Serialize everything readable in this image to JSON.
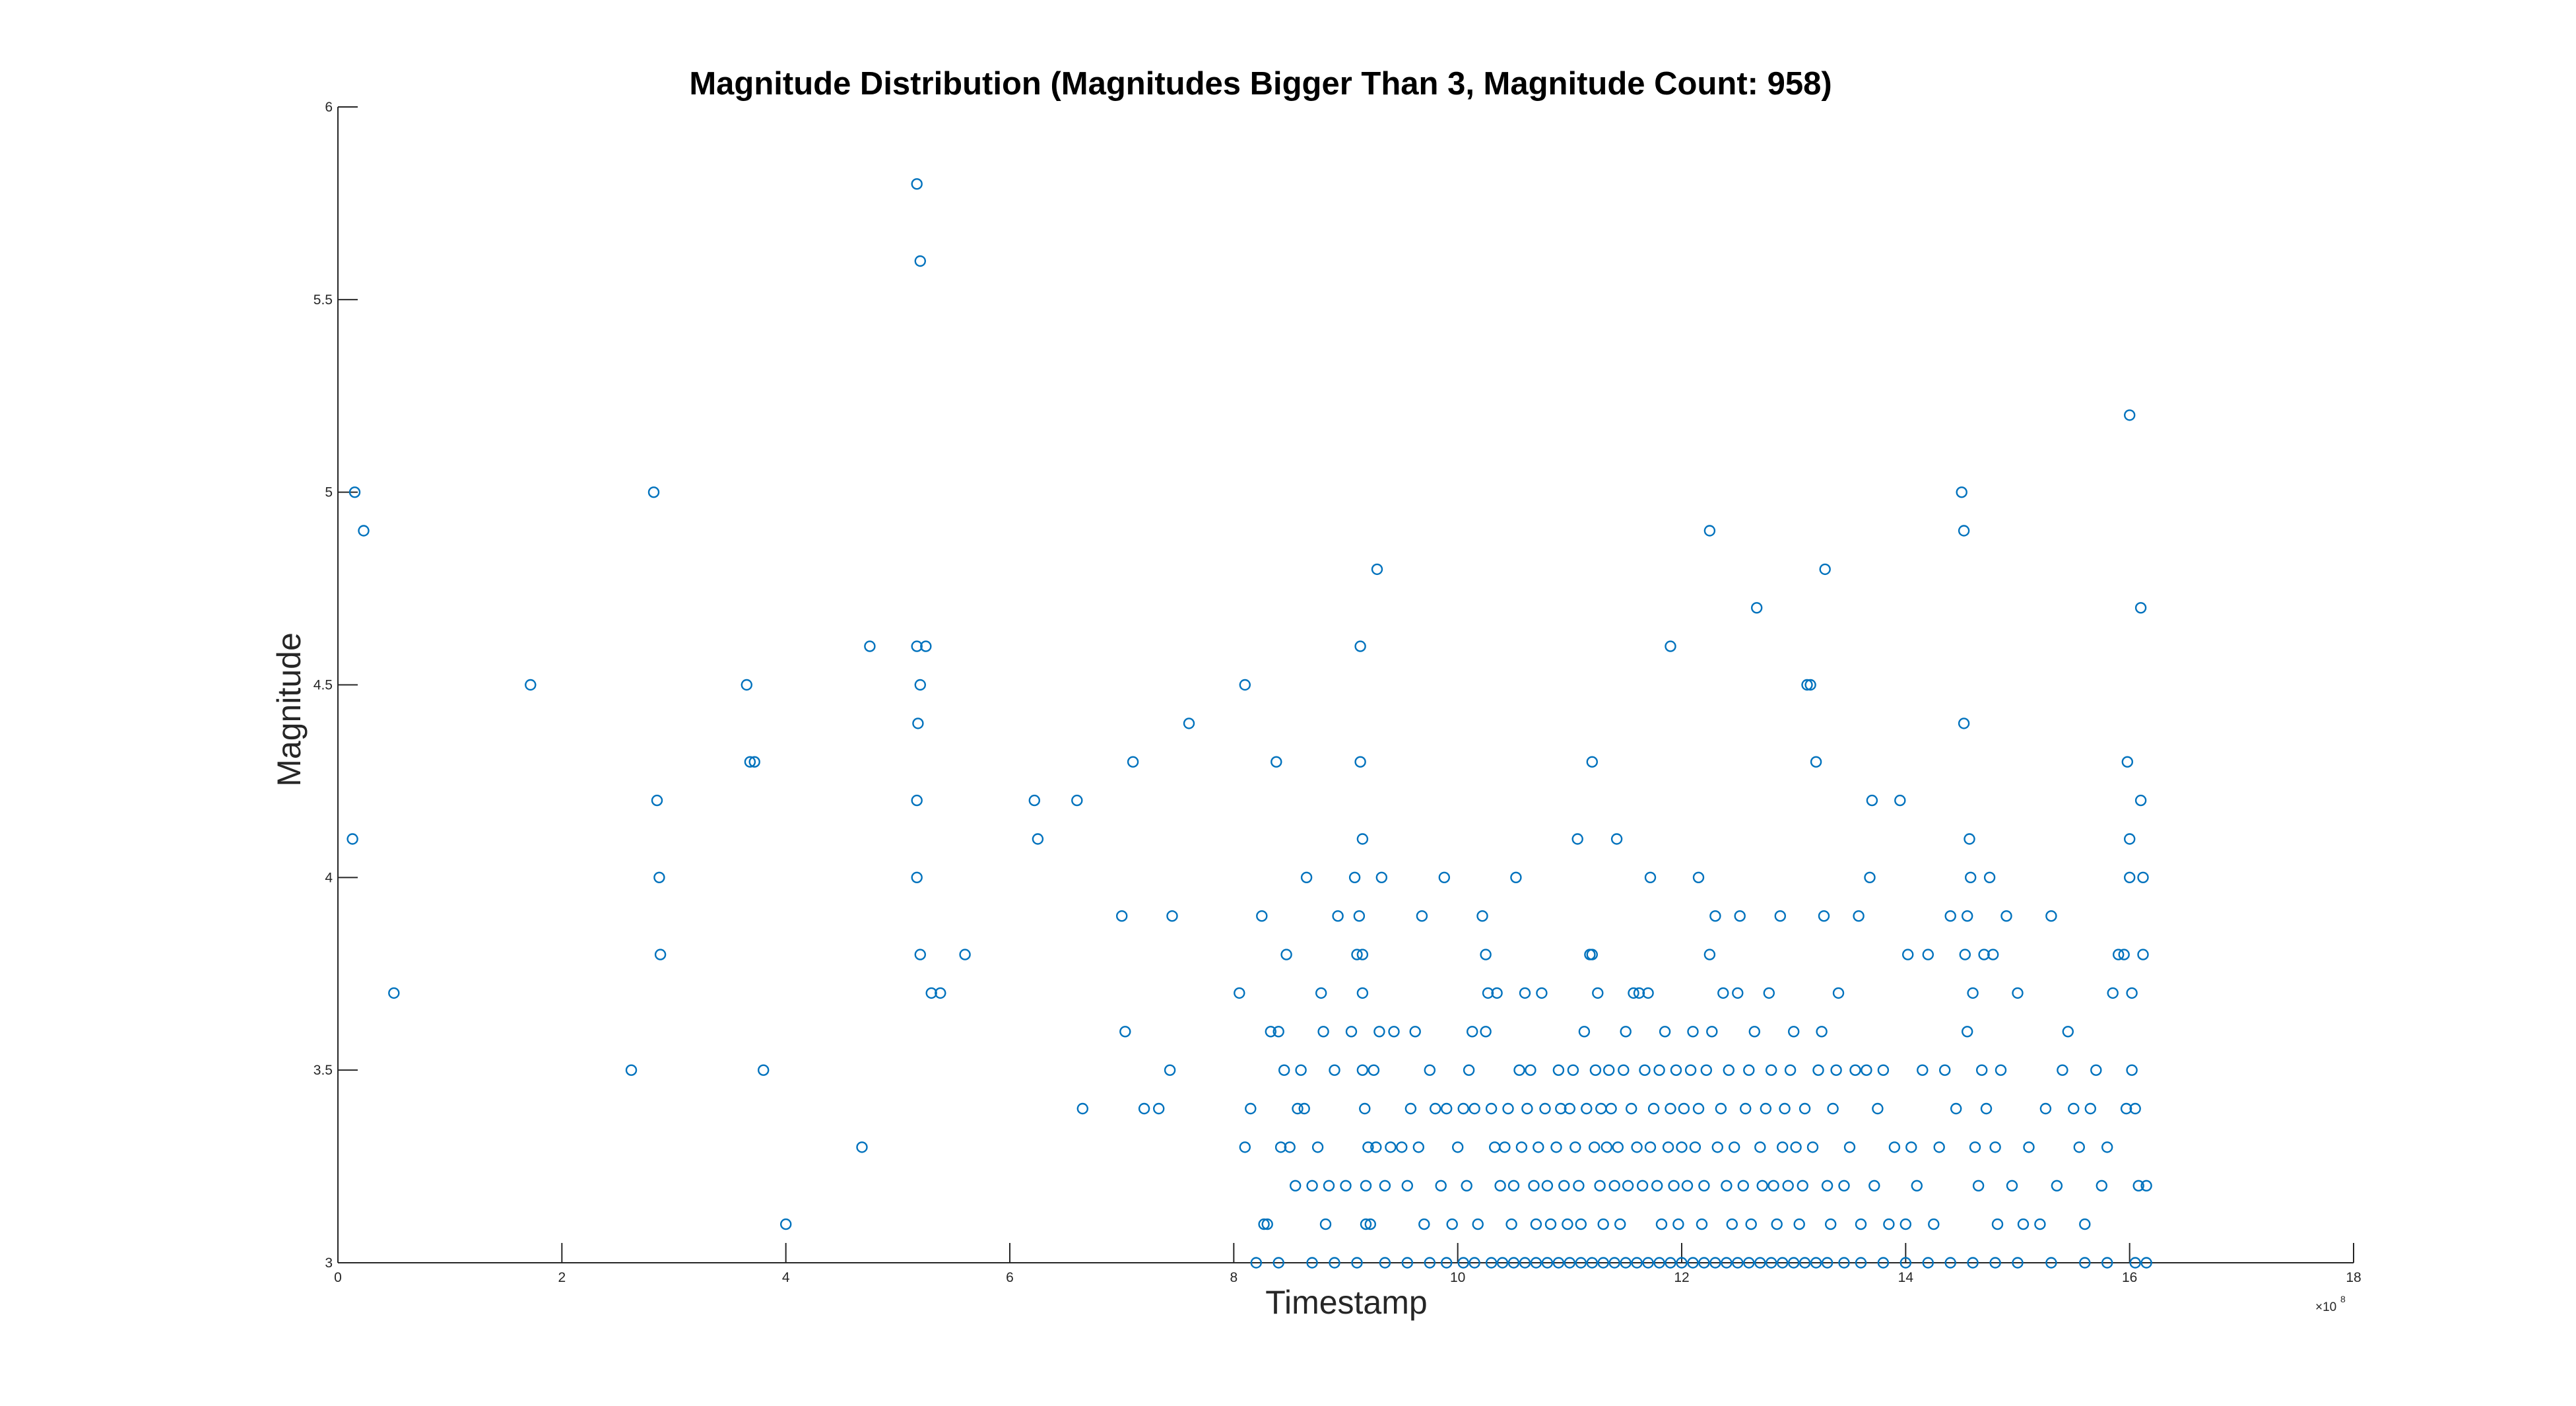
{
  "chart_data": {
    "type": "scatter",
    "title": "Magnitude Distribution (Magnitudes Bigger Than 3, Magnitude Count: 958)",
    "xlabel": "Timestamp",
    "ylabel": "Magnitude",
    "x_scale_factor": "×10",
    "x_scale_exponent": "8",
    "xlim": [
      0,
      18
    ],
    "ylim": [
      3,
      6
    ],
    "xticks": [
      "0",
      "2",
      "4",
      "6",
      "8",
      "10",
      "12",
      "14",
      "16",
      "18"
    ],
    "yticks": [
      "3",
      "3.5",
      "4",
      "4.5",
      "5",
      "5.5",
      "6"
    ],
    "grid": false,
    "marker": "circle",
    "marker_color": "#0072BD",
    "x_units": "×10^8",
    "points": [
      [
        0.15,
        5.0
      ],
      [
        0.23,
        4.9
      ],
      [
        0.13,
        4.1
      ],
      [
        0.5,
        3.7
      ],
      [
        1.72,
        4.5
      ],
      [
        2.62,
        3.5
      ],
      [
        2.82,
        5.0
      ],
      [
        2.85,
        4.2
      ],
      [
        2.87,
        4.0
      ],
      [
        2.88,
        3.8
      ],
      [
        3.65,
        4.5
      ],
      [
        3.68,
        4.3
      ],
      [
        3.72,
        4.3
      ],
      [
        3.8,
        3.5
      ],
      [
        4.0,
        3.1
      ],
      [
        4.68,
        3.3
      ],
      [
        4.75,
        4.6
      ],
      [
        5.17,
        5.8
      ],
      [
        5.2,
        5.6
      ],
      [
        5.17,
        4.6
      ],
      [
        5.25,
        4.6
      ],
      [
        5.2,
        4.5
      ],
      [
        5.18,
        4.4
      ],
      [
        5.17,
        4.2
      ],
      [
        5.17,
        4.0
      ],
      [
        5.2,
        3.8
      ],
      [
        5.3,
        3.7
      ],
      [
        5.38,
        3.7
      ],
      [
        5.6,
        3.8
      ],
      [
        6.22,
        4.2
      ],
      [
        6.25,
        4.1
      ],
      [
        6.6,
        4.2
      ],
      [
        6.65,
        3.4
      ],
      [
        7.0,
        3.9
      ],
      [
        7.03,
        3.6
      ],
      [
        7.1,
        4.3
      ],
      [
        7.2,
        3.4
      ],
      [
        7.33,
        3.4
      ],
      [
        7.45,
        3.9
      ],
      [
        7.43,
        3.5
      ],
      [
        7.6,
        4.4
      ],
      [
        8.05,
        3.7
      ],
      [
        8.1,
        4.5
      ],
      [
        8.1,
        3.3
      ],
      [
        8.15,
        3.4
      ],
      [
        8.25,
        3.9
      ],
      [
        8.27,
        3.1
      ],
      [
        8.3,
        3.1
      ],
      [
        8.33,
        3.6
      ],
      [
        8.38,
        4.3
      ],
      [
        8.4,
        3.6
      ],
      [
        8.42,
        3.3
      ],
      [
        8.45,
        3.5
      ],
      [
        8.47,
        3.8
      ],
      [
        8.5,
        3.3
      ],
      [
        8.55,
        3.2
      ],
      [
        8.57,
        3.4
      ],
      [
        8.6,
        3.5
      ],
      [
        8.63,
        3.4
      ],
      [
        8.65,
        4.0
      ],
      [
        8.7,
        3.2
      ],
      [
        8.75,
        3.3
      ],
      [
        8.78,
        3.7
      ],
      [
        8.8,
        3.6
      ],
      [
        8.82,
        3.1
      ],
      [
        8.85,
        3.2
      ],
      [
        8.9,
        3.5
      ],
      [
        8.93,
        3.9
      ],
      [
        9.0,
        3.2
      ],
      [
        9.05,
        3.6
      ],
      [
        9.08,
        4.0
      ],
      [
        9.1,
        3.8
      ],
      [
        9.12,
        3.9
      ],
      [
        9.13,
        4.6
      ],
      [
        9.13,
        4.3
      ],
      [
        9.15,
        4.1
      ],
      [
        9.15,
        3.8
      ],
      [
        9.15,
        3.7
      ],
      [
        9.15,
        3.5
      ],
      [
        9.17,
        3.4
      ],
      [
        9.2,
        3.3
      ],
      [
        9.18,
        3.2
      ],
      [
        9.18,
        3.1
      ],
      [
        9.22,
        3.1
      ],
      [
        9.25,
        3.5
      ],
      [
        9.27,
        3.3
      ],
      [
        9.3,
        3.6
      ],
      [
        9.32,
        4.0
      ],
      [
        9.28,
        4.8
      ],
      [
        9.35,
        3.2
      ],
      [
        9.4,
        3.3
      ],
      [
        9.43,
        3.6
      ],
      [
        9.5,
        3.3
      ],
      [
        9.55,
        3.2
      ],
      [
        9.58,
        3.4
      ],
      [
        9.62,
        3.6
      ],
      [
        9.65,
        3.3
      ],
      [
        9.68,
        3.9
      ],
      [
        9.7,
        3.1
      ],
      [
        9.75,
        3.5
      ],
      [
        9.8,
        3.4
      ],
      [
        9.85,
        3.2
      ],
      [
        9.88,
        4.0
      ],
      [
        9.9,
        3.4
      ],
      [
        9.95,
        3.1
      ],
      [
        10.0,
        3.3
      ],
      [
        10.05,
        3.4
      ],
      [
        10.08,
        3.2
      ],
      [
        10.1,
        3.5
      ],
      [
        10.13,
        3.6
      ],
      [
        10.15,
        3.4
      ],
      [
        10.18,
        3.1
      ],
      [
        10.22,
        3.9
      ],
      [
        10.25,
        3.8
      ],
      [
        10.25,
        3.6
      ],
      [
        10.27,
        3.7
      ],
      [
        10.3,
        3.4
      ],
      [
        10.33,
        3.3
      ],
      [
        10.35,
        3.7
      ],
      [
        10.38,
        3.2
      ],
      [
        10.42,
        3.3
      ],
      [
        10.45,
        3.4
      ],
      [
        10.48,
        3.1
      ],
      [
        10.5,
        3.2
      ],
      [
        10.52,
        4.0
      ],
      [
        10.55,
        3.5
      ],
      [
        10.57,
        3.3
      ],
      [
        10.6,
        3.7
      ],
      [
        10.62,
        3.4
      ],
      [
        10.65,
        3.5
      ],
      [
        10.68,
        3.2
      ],
      [
        10.7,
        3.1
      ],
      [
        10.72,
        3.3
      ],
      [
        10.75,
        3.7
      ],
      [
        10.78,
        3.4
      ],
      [
        10.8,
        3.2
      ],
      [
        10.83,
        3.1
      ],
      [
        10.88,
        3.3
      ],
      [
        10.9,
        3.5
      ],
      [
        10.92,
        3.4
      ],
      [
        10.95,
        3.2
      ],
      [
        10.98,
        3.1
      ],
      [
        11.0,
        3.4
      ],
      [
        11.03,
        3.5
      ],
      [
        11.05,
        3.3
      ],
      [
        11.07,
        4.1
      ],
      [
        11.08,
        3.2
      ],
      [
        11.1,
        3.1
      ],
      [
        11.13,
        3.6
      ],
      [
        11.15,
        3.4
      ],
      [
        11.18,
        3.8
      ],
      [
        11.2,
        3.8
      ],
      [
        11.2,
        4.3
      ],
      [
        11.22,
        3.3
      ],
      [
        11.23,
        3.5
      ],
      [
        11.25,
        3.7
      ],
      [
        11.27,
        3.2
      ],
      [
        11.28,
        3.4
      ],
      [
        11.3,
        3.1
      ],
      [
        11.33,
        3.3
      ],
      [
        11.35,
        3.5
      ],
      [
        11.37,
        3.4
      ],
      [
        11.4,
        3.2
      ],
      [
        11.42,
        4.1
      ],
      [
        11.43,
        3.3
      ],
      [
        11.45,
        3.1
      ],
      [
        11.48,
        3.5
      ],
      [
        11.5,
        3.6
      ],
      [
        11.52,
        3.2
      ],
      [
        11.55,
        3.4
      ],
      [
        11.57,
        3.7
      ],
      [
        11.6,
        3.3
      ],
      [
        11.62,
        3.7
      ],
      [
        11.65,
        3.2
      ],
      [
        11.67,
        3.5
      ],
      [
        11.7,
        3.7
      ],
      [
        11.72,
        4.0
      ],
      [
        11.72,
        3.3
      ],
      [
        11.75,
        3.4
      ],
      [
        11.78,
        3.2
      ],
      [
        11.8,
        3.5
      ],
      [
        11.82,
        3.1
      ],
      [
        11.85,
        3.6
      ],
      [
        11.88,
        3.3
      ],
      [
        11.9,
        4.6
      ],
      [
        11.9,
        3.4
      ],
      [
        11.93,
        3.2
      ],
      [
        11.95,
        3.5
      ],
      [
        11.97,
        3.1
      ],
      [
        12.0,
        3.3
      ],
      [
        12.02,
        3.4
      ],
      [
        12.05,
        3.2
      ],
      [
        12.08,
        3.5
      ],
      [
        12.1,
        3.6
      ],
      [
        12.12,
        3.3
      ],
      [
        12.15,
        4.0
      ],
      [
        12.15,
        3.4
      ],
      [
        12.18,
        3.1
      ],
      [
        12.2,
        3.2
      ],
      [
        12.22,
        3.5
      ],
      [
        12.25,
        3.8
      ],
      [
        12.25,
        4.9
      ],
      [
        12.27,
        3.6
      ],
      [
        12.3,
        3.9
      ],
      [
        12.32,
        3.3
      ],
      [
        12.35,
        3.4
      ],
      [
        12.37,
        3.7
      ],
      [
        12.4,
        3.2
      ],
      [
        12.42,
        3.5
      ],
      [
        12.45,
        3.1
      ],
      [
        12.47,
        3.3
      ],
      [
        12.5,
        3.7
      ],
      [
        12.52,
        3.9
      ],
      [
        12.55,
        3.2
      ],
      [
        12.57,
        3.4
      ],
      [
        12.6,
        3.5
      ],
      [
        12.62,
        3.1
      ],
      [
        12.65,
        3.6
      ],
      [
        12.67,
        4.7
      ],
      [
        12.7,
        3.3
      ],
      [
        12.72,
        3.2
      ],
      [
        12.75,
        3.4
      ],
      [
        12.78,
        3.7
      ],
      [
        12.8,
        3.5
      ],
      [
        12.82,
        3.2
      ],
      [
        12.85,
        3.1
      ],
      [
        12.88,
        3.9
      ],
      [
        12.9,
        3.3
      ],
      [
        12.92,
        3.4
      ],
      [
        12.95,
        3.2
      ],
      [
        12.97,
        3.5
      ],
      [
        13.0,
        3.6
      ],
      [
        13.02,
        3.3
      ],
      [
        13.05,
        3.1
      ],
      [
        13.08,
        3.2
      ],
      [
        13.1,
        3.4
      ],
      [
        13.12,
        4.5
      ],
      [
        13.15,
        4.5
      ],
      [
        13.17,
        3.3
      ],
      [
        13.2,
        4.3
      ],
      [
        13.22,
        3.5
      ],
      [
        13.25,
        3.6
      ],
      [
        13.27,
        3.9
      ],
      [
        13.28,
        4.8
      ],
      [
        13.3,
        3.2
      ],
      [
        13.33,
        3.1
      ],
      [
        13.35,
        3.4
      ],
      [
        13.38,
        3.5
      ],
      [
        13.4,
        3.7
      ],
      [
        13.45,
        3.2
      ],
      [
        13.5,
        3.3
      ],
      [
        13.55,
        3.5
      ],
      [
        13.58,
        3.9
      ],
      [
        13.6,
        3.1
      ],
      [
        13.65,
        3.5
      ],
      [
        13.68,
        4.0
      ],
      [
        13.7,
        4.2
      ],
      [
        13.72,
        3.2
      ],
      [
        13.75,
        3.4
      ],
      [
        13.8,
        3.5
      ],
      [
        13.85,
        3.1
      ],
      [
        13.9,
        3.3
      ],
      [
        13.95,
        4.2
      ],
      [
        14.0,
        3.1
      ],
      [
        14.02,
        3.8
      ],
      [
        14.05,
        3.3
      ],
      [
        14.1,
        3.2
      ],
      [
        14.15,
        3.5
      ],
      [
        14.2,
        3.8
      ],
      [
        14.25,
        3.1
      ],
      [
        14.3,
        3.3
      ],
      [
        14.35,
        3.5
      ],
      [
        14.4,
        3.9
      ],
      [
        14.45,
        3.4
      ],
      [
        14.5,
        5.0
      ],
      [
        14.52,
        4.4
      ],
      [
        14.52,
        4.9
      ],
      [
        14.53,
        3.8
      ],
      [
        14.55,
        3.9
      ],
      [
        14.55,
        3.6
      ],
      [
        14.57,
        4.1
      ],
      [
        14.58,
        4.0
      ],
      [
        14.6,
        3.7
      ],
      [
        14.62,
        3.3
      ],
      [
        14.65,
        3.2
      ],
      [
        14.68,
        3.5
      ],
      [
        14.7,
        3.8
      ],
      [
        14.72,
        3.4
      ],
      [
        14.75,
        4.0
      ],
      [
        14.78,
        3.8
      ],
      [
        14.8,
        3.3
      ],
      [
        14.82,
        3.1
      ],
      [
        14.85,
        3.5
      ],
      [
        14.9,
        3.9
      ],
      [
        14.95,
        3.2
      ],
      [
        15.0,
        3.7
      ],
      [
        15.05,
        3.1
      ],
      [
        15.1,
        3.3
      ],
      [
        15.2,
        3.1
      ],
      [
        15.25,
        3.4
      ],
      [
        15.3,
        3.9
      ],
      [
        15.35,
        3.2
      ],
      [
        15.4,
        3.5
      ],
      [
        15.45,
        3.6
      ],
      [
        15.5,
        3.4
      ],
      [
        15.55,
        3.3
      ],
      [
        15.6,
        3.1
      ],
      [
        15.65,
        3.4
      ],
      [
        15.7,
        3.5
      ],
      [
        15.75,
        3.2
      ],
      [
        15.8,
        3.3
      ],
      [
        15.85,
        3.7
      ],
      [
        15.9,
        3.8
      ],
      [
        15.95,
        3.8
      ],
      [
        15.97,
        3.4
      ],
      [
        15.98,
        4.3
      ],
      [
        16.0,
        5.2
      ],
      [
        16.0,
        4.1
      ],
      [
        16.0,
        4.0
      ],
      [
        16.02,
        3.5
      ],
      [
        16.02,
        3.7
      ],
      [
        16.05,
        3.4
      ],
      [
        16.08,
        3.2
      ],
      [
        16.1,
        4.7
      ],
      [
        16.1,
        4.2
      ],
      [
        16.12,
        4.0
      ],
      [
        16.12,
        3.8
      ],
      [
        16.15,
        3.2
      ],
      [
        8.2,
        3.0
      ],
      [
        8.4,
        3.0
      ],
      [
        8.7,
        3.0
      ],
      [
        8.9,
        3.0
      ],
      [
        9.1,
        3.0
      ],
      [
        9.35,
        3.0
      ],
      [
        9.55,
        3.0
      ],
      [
        9.75,
        3.0
      ],
      [
        9.9,
        3.0
      ],
      [
        10.05,
        3.0
      ],
      [
        10.15,
        3.0
      ],
      [
        10.3,
        3.0
      ],
      [
        10.4,
        3.0
      ],
      [
        10.5,
        3.0
      ],
      [
        10.6,
        3.0
      ],
      [
        10.7,
        3.0
      ],
      [
        10.8,
        3.0
      ],
      [
        10.9,
        3.0
      ],
      [
        11.0,
        3.0
      ],
      [
        11.1,
        3.0
      ],
      [
        11.2,
        3.0
      ],
      [
        11.3,
        3.0
      ],
      [
        11.4,
        3.0
      ],
      [
        11.5,
        3.0
      ],
      [
        11.6,
        3.0
      ],
      [
        11.7,
        3.0
      ],
      [
        11.8,
        3.0
      ],
      [
        11.9,
        3.0
      ],
      [
        12.0,
        3.0
      ],
      [
        12.1,
        3.0
      ],
      [
        12.2,
        3.0
      ],
      [
        12.3,
        3.0
      ],
      [
        12.4,
        3.0
      ],
      [
        12.5,
        3.0
      ],
      [
        12.6,
        3.0
      ],
      [
        12.7,
        3.0
      ],
      [
        12.8,
        3.0
      ],
      [
        12.9,
        3.0
      ],
      [
        13.0,
        3.0
      ],
      [
        13.1,
        3.0
      ],
      [
        13.2,
        3.0
      ],
      [
        13.3,
        3.0
      ],
      [
        13.45,
        3.0
      ],
      [
        13.6,
        3.0
      ],
      [
        13.8,
        3.0
      ],
      [
        14.0,
        3.0
      ],
      [
        14.2,
        3.0
      ],
      [
        14.4,
        3.0
      ],
      [
        14.6,
        3.0
      ],
      [
        14.8,
        3.0
      ],
      [
        15.0,
        3.0
      ],
      [
        15.3,
        3.0
      ],
      [
        15.6,
        3.0
      ],
      [
        15.8,
        3.0
      ],
      [
        16.05,
        3.0
      ],
      [
        16.15,
        3.0
      ]
    ]
  }
}
